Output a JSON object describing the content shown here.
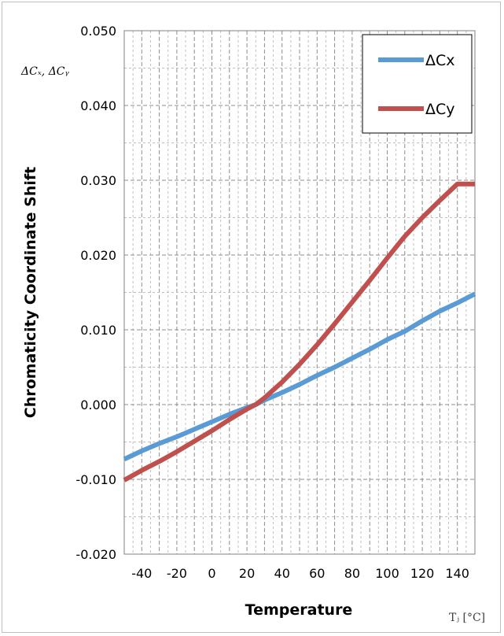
{
  "chart_data": {
    "type": "line",
    "title": "",
    "xlabel": "Temperature",
    "xlabel_unit": "Tⱼ [°C]",
    "ylabel": "Chromaticity Coordinate Shift",
    "ylabel_symbol": "ΔCₓ, ΔCᵧ",
    "xlim": [
      -50,
      150
    ],
    "ylim": [
      -0.02,
      0.05
    ],
    "x_ticks": [
      -40,
      -20,
      0,
      20,
      40,
      60,
      80,
      100,
      120,
      140
    ],
    "x_tick_labels": [
      "-40",
      "-20",
      "0",
      "20",
      "40",
      "60",
      "80",
      "100",
      "120",
      "140"
    ],
    "y_ticks": [
      -0.02,
      -0.01,
      0.0,
      0.01,
      0.02,
      0.03,
      0.04,
      0.05
    ],
    "y_tick_labels": [
      "-0.020",
      "-0.010",
      "0.000",
      "0.010",
      "0.020",
      "0.030",
      "0.040",
      "0.050"
    ],
    "grid": "major and minor, dashed",
    "legend_placement": "top-right",
    "x": [
      -50,
      -40,
      -30,
      -20,
      -10,
      0,
      10,
      20,
      25,
      30,
      40,
      50,
      60,
      70,
      80,
      90,
      100,
      110,
      120,
      130,
      140,
      150
    ],
    "series": [
      {
        "name": "ΔCx",
        "color": "#5b9bd5",
        "values": [
          -0.0073,
          -0.0062,
          -0.0052,
          -0.0043,
          -0.0033,
          -0.0023,
          -0.0013,
          -0.0004,
          0.0,
          0.0006,
          0.0016,
          0.0027,
          0.0039,
          0.005,
          0.0062,
          0.0074,
          0.0087,
          0.0098,
          0.0112,
          0.0125,
          0.0136,
          0.0148
        ]
      },
      {
        "name": "ΔCy",
        "color": "#c0504d",
        "values": [
          -0.0101,
          -0.0088,
          -0.0076,
          -0.0063,
          -0.0049,
          -0.0035,
          -0.002,
          -0.0006,
          0.0,
          0.0009,
          0.003,
          0.0054,
          0.008,
          0.0108,
          0.0137,
          0.0166,
          0.0196,
          0.0225,
          0.025,
          0.0273,
          0.0295,
          0.0295
        ]
      }
    ]
  }
}
